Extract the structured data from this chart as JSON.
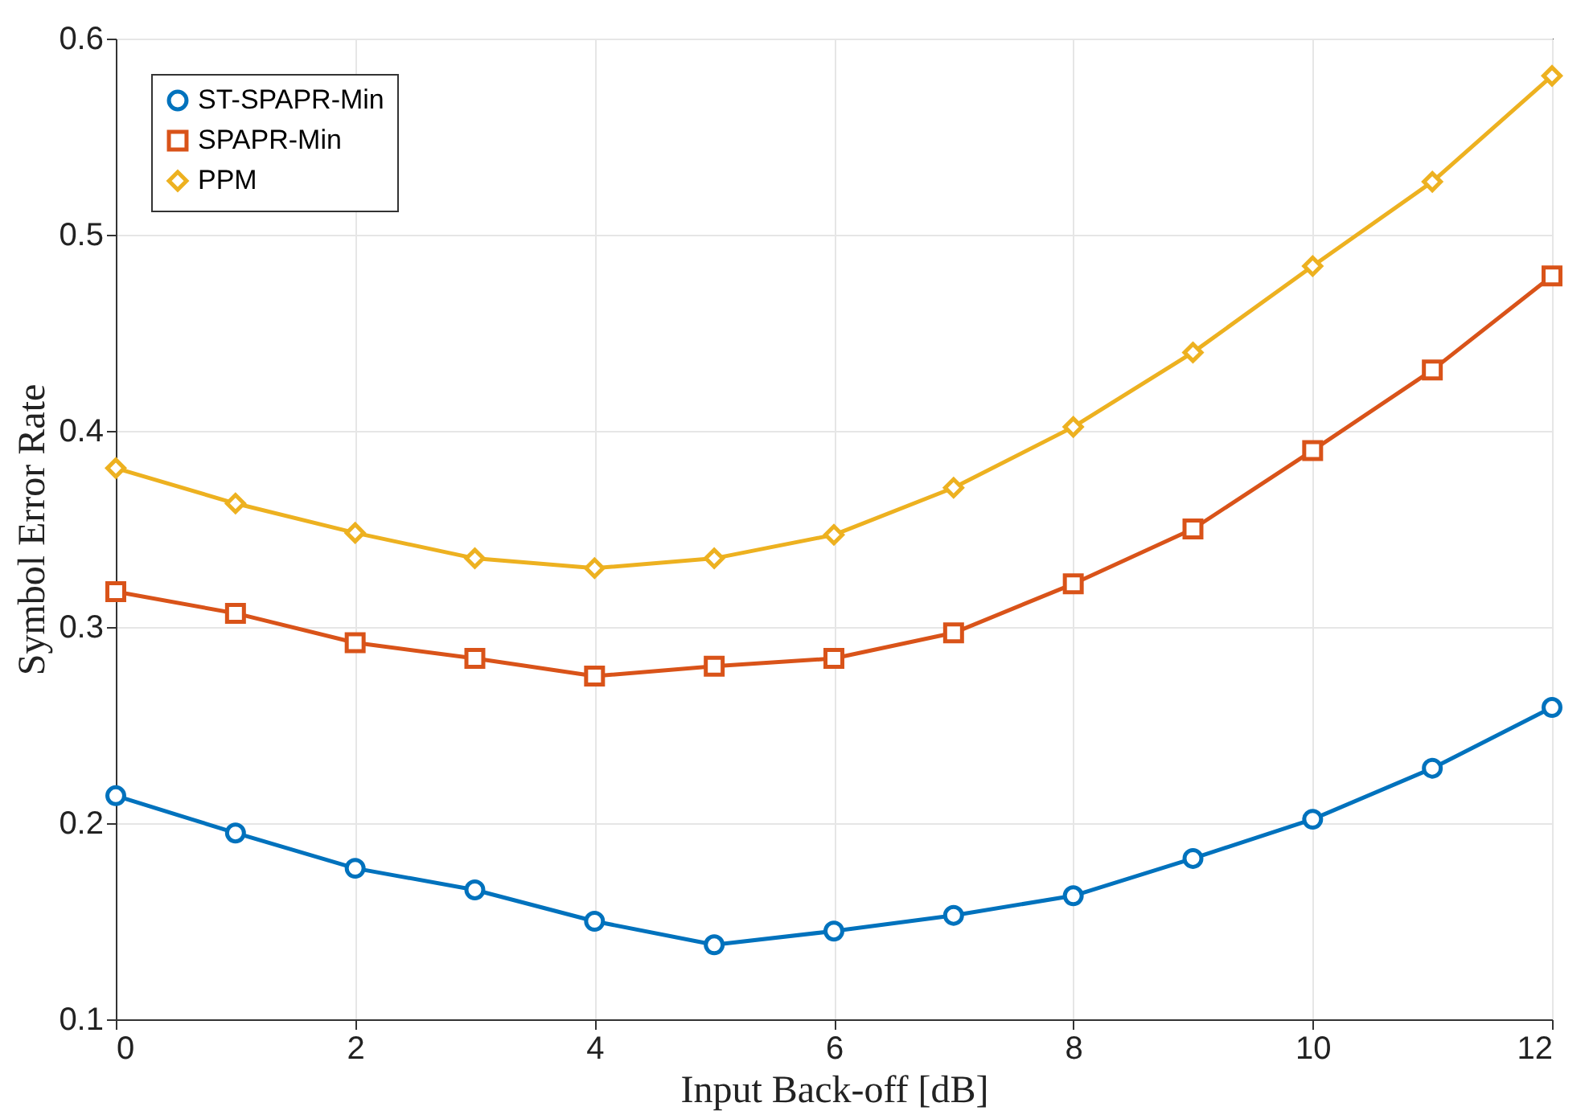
{
  "chart_data": {
    "type": "line",
    "xlabel": "Input Back-off [dB]",
    "ylabel": "Symbol Error Rate",
    "x": [
      0,
      1,
      2,
      3,
      4,
      5,
      6,
      7,
      8,
      9,
      10,
      11,
      12
    ],
    "series": [
      {
        "name": "ST-SPAPR-Min",
        "color": "#0072bd",
        "marker": "circle",
        "values": [
          0.214,
          0.195,
          0.177,
          0.166,
          0.15,
          0.138,
          0.145,
          0.153,
          0.163,
          0.182,
          0.202,
          0.228,
          0.259
        ]
      },
      {
        "name": "SPAPR-Min",
        "color": "#d95319",
        "marker": "square",
        "values": [
          0.318,
          0.307,
          0.292,
          0.284,
          0.275,
          0.28,
          0.284,
          0.297,
          0.322,
          0.35,
          0.39,
          0.431,
          0.479
        ]
      },
      {
        "name": "PPM",
        "color": "#edb120",
        "marker": "diamond",
        "values": [
          0.381,
          0.363,
          0.348,
          0.335,
          0.33,
          0.335,
          0.347,
          0.371,
          0.402,
          0.44,
          0.484,
          0.527,
          0.581
        ]
      }
    ],
    "xlim": [
      0,
      12
    ],
    "xticks": [
      0,
      2,
      4,
      6,
      8,
      10,
      12
    ],
    "ylim": [
      0.1,
      0.6
    ],
    "yticks": [
      0.1,
      0.2,
      0.3,
      0.4,
      0.5,
      0.6
    ],
    "grid": true,
    "legend": "top left",
    "line_style": "solid"
  }
}
